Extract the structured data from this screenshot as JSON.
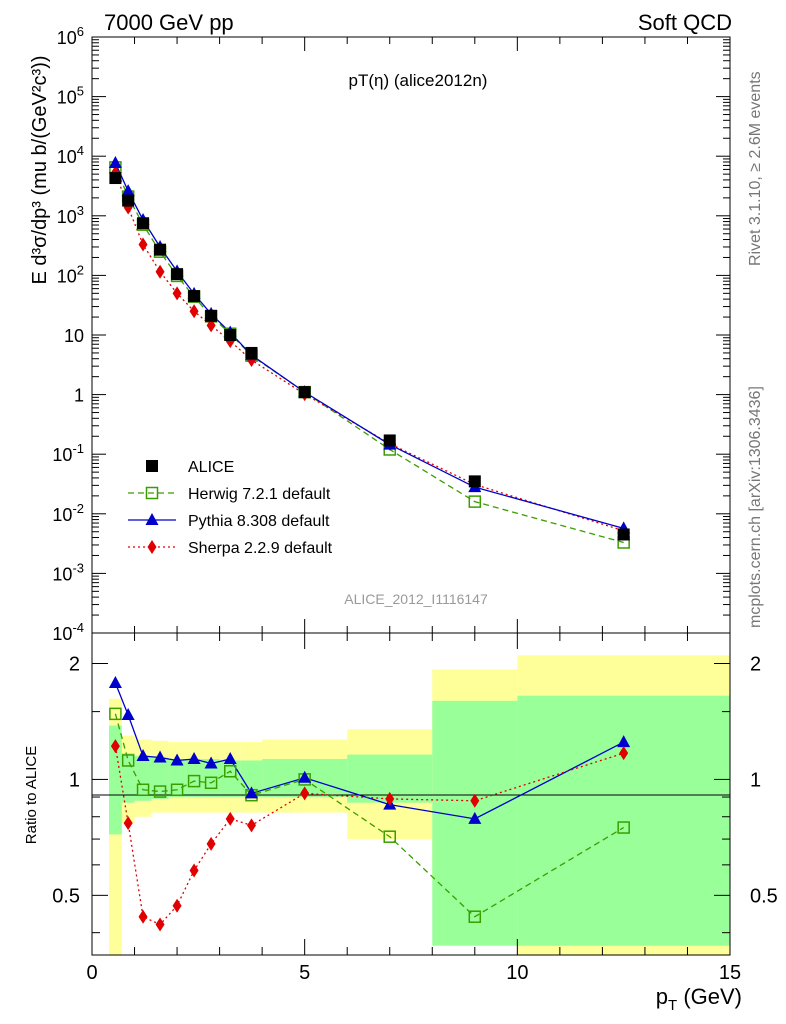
{
  "header": {
    "left": "7000 GeV pp",
    "right": "Soft QCD"
  },
  "side_text": {
    "rivet": "Rivet 3.1.10, ≥ 2.6M events",
    "site": "mcplots.cern.ch [arXiv:1306.3436]"
  },
  "chart_data": [
    {
      "type": "scatter",
      "panel": "main",
      "title": "pT(η) (alice2012n)",
      "watermark": "ALICE_2012_I1116147",
      "ylabel": "E d³σ/dp³ (mu b/(GeV²c³))",
      "xlabel": "",
      "yscale": "log",
      "xlim": [
        0,
        15
      ],
      "ylim": [
        0.0001,
        1000000
      ],
      "y_ticks": [
        "10^-4",
        "10^-3",
        "10^-2",
        "10^-1",
        "1",
        "10",
        "10^2",
        "10^3",
        "10^4",
        "10^5",
        "10^6"
      ],
      "legend_position": "lower-left",
      "x": [
        0.55,
        0.85,
        1.2,
        1.6,
        2.0,
        2.4,
        2.8,
        3.25,
        3.75,
        5.0,
        7.0,
        9.0,
        12.5
      ],
      "series": [
        {
          "name": "ALICE",
          "color": "#000000",
          "marker": "square-filled",
          "line": "none",
          "values": [
            4300,
            1800,
            750,
            270,
            105,
            45,
            21,
            10,
            5,
            1.1,
            0.17,
            0.035,
            0.0045
          ]
        },
        {
          "name": "Herwig 7.2.1 default",
          "color": "#3a9e00",
          "marker": "square-open",
          "line": "dashed",
          "values": [
            6500,
            2100,
            710,
            250,
            98,
            44,
            20.5,
            10.5,
            4.5,
            1.1,
            0.12,
            0.016,
            0.0033
          ]
        },
        {
          "name": "Pythia 8.308 default",
          "color": "#0000cc",
          "marker": "triangle-filled",
          "line": "solid",
          "values": [
            7700,
            2600,
            850,
            300,
            117,
            49,
            22.6,
            11,
            4.6,
            1.1,
            0.145,
            0.028,
            0.0057
          ]
        },
        {
          "name": "Sherpa 2.2.9 default",
          "color": "#e00000",
          "marker": "diamond-filled",
          "line": "dotted",
          "values": [
            5300,
            1380,
            330,
            115,
            50,
            25,
            14.5,
            7.9,
            3.8,
            1.02,
            0.15,
            0.031,
            0.0052
          ]
        }
      ]
    },
    {
      "type": "scatter",
      "panel": "ratio",
      "ylabel": "Ratio to ALICE",
      "xlabel": "p_T (GeV)",
      "yscale": "log",
      "xlim": [
        0,
        15
      ],
      "ylim": [
        0.35,
        2.4
      ],
      "x_ticks": [
        "0",
        "5",
        "10",
        "15"
      ],
      "y_ticks": [
        "0.5",
        "1",
        "2"
      ],
      "x": [
        0.55,
        0.85,
        1.2,
        1.6,
        2.0,
        2.4,
        2.8,
        3.25,
        3.75,
        5.0,
        7.0,
        9.0,
        12.5
      ],
      "uncertainty_bands": {
        "edges": [
          0.4,
          0.7,
          1.0,
          1.4,
          1.8,
          2.2,
          2.6,
          3.0,
          3.5,
          4.0,
          6.0,
          8.0,
          10.0,
          15.0
        ],
        "stat_lo": [
          0.72,
          0.87,
          0.88,
          0.89,
          0.9,
          0.9,
          0.9,
          0.9,
          0.9,
          0.9,
          0.87,
          0.37,
          0.37
        ],
        "stat_hi": [
          1.38,
          1.17,
          1.15,
          1.14,
          1.13,
          1.13,
          1.13,
          1.12,
          1.12,
          1.13,
          1.16,
          1.6,
          1.65
        ],
        "total_lo": [
          0.35,
          0.77,
          0.8,
          0.82,
          0.82,
          0.82,
          0.82,
          0.82,
          0.82,
          0.82,
          0.7,
          0.55,
          0.35
        ],
        "total_hi": [
          1.62,
          1.3,
          1.27,
          1.26,
          1.25,
          1.25,
          1.25,
          1.25,
          1.25,
          1.27,
          1.35,
          1.93,
          2.1
        ],
        "stat_color": "#99ff99",
        "total_color": "#ffff99"
      },
      "series": [
        {
          "name": "Herwig 7.2.1 default",
          "color": "#3a9e00",
          "marker": "square-open",
          "line": "dashed",
          "values": [
            1.48,
            1.12,
            0.94,
            0.93,
            0.94,
            0.99,
            0.98,
            1.05,
            0.91,
            1.0,
            0.71,
            0.44,
            0.75
          ]
        },
        {
          "name": "Pythia 8.308 default",
          "color": "#0000cc",
          "marker": "triangle-filled",
          "line": "solid",
          "values": [
            1.78,
            1.47,
            1.15,
            1.14,
            1.12,
            1.13,
            1.1,
            1.13,
            0.92,
            1.01,
            0.86,
            0.79,
            1.25
          ]
        },
        {
          "name": "Sherpa 2.2.9 default",
          "color": "#e00000",
          "marker": "diamond-filled",
          "line": "dotted",
          "values": [
            1.22,
            0.77,
            0.44,
            0.42,
            0.47,
            0.58,
            0.68,
            0.79,
            0.76,
            0.92,
            0.89,
            0.88,
            1.17
          ]
        }
      ]
    }
  ]
}
